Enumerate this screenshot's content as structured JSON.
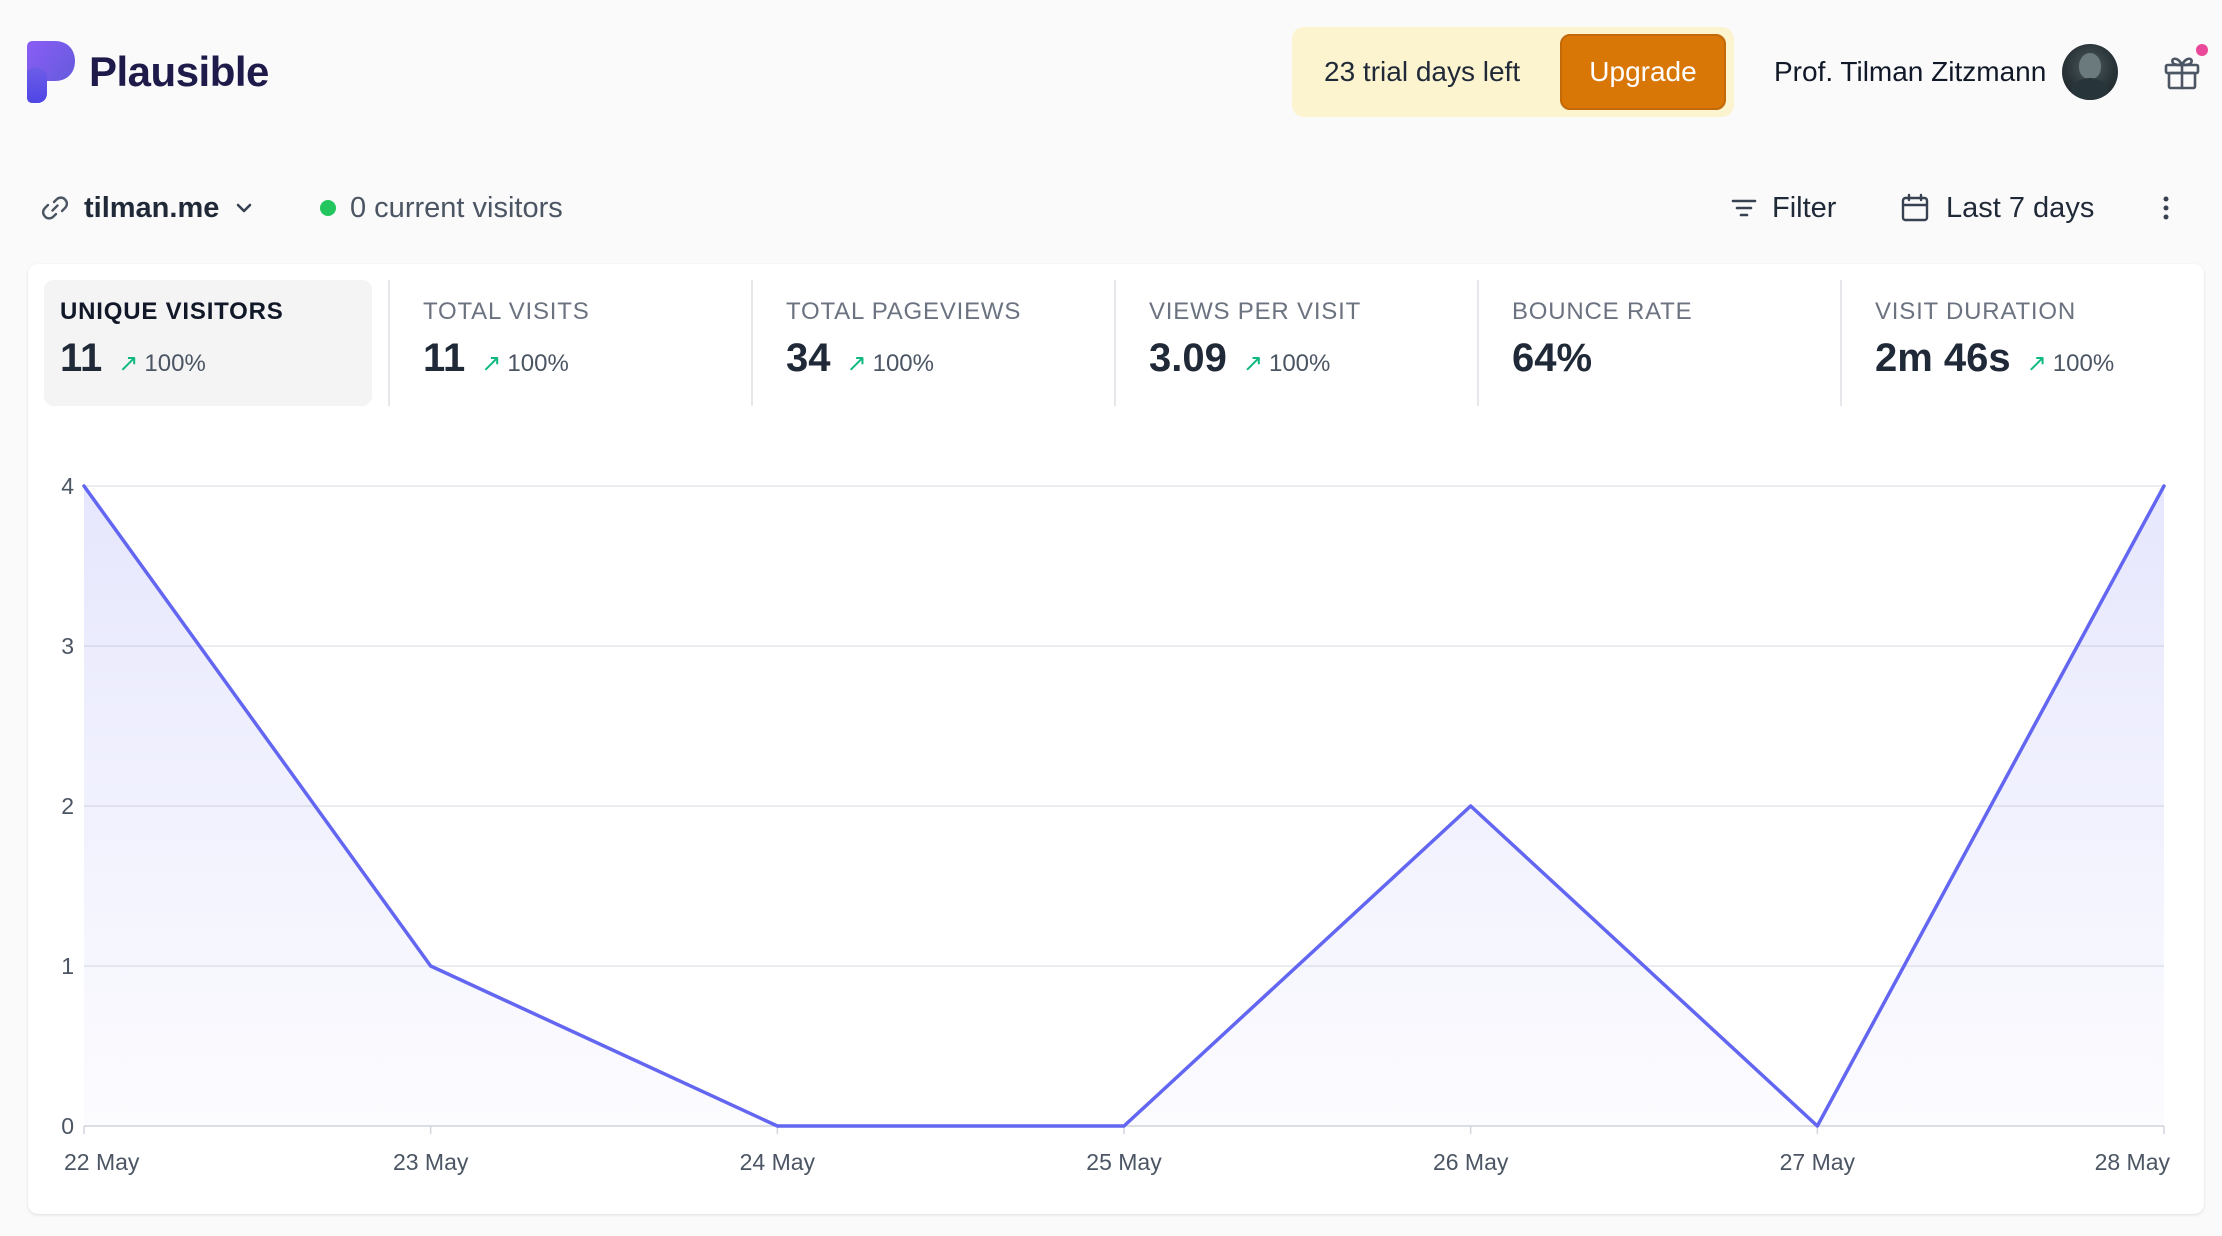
{
  "header": {
    "brand": "Plausible",
    "trial_text": "23 trial days left",
    "upgrade_label": "Upgrade",
    "user_name": "Prof. Tilman Zitzmann"
  },
  "toolbar": {
    "site": "tilman.me",
    "current_visitors": "0 current visitors",
    "filter_label": "Filter",
    "period_label": "Last 7 days"
  },
  "stats": [
    {
      "label": "UNIQUE VISITORS",
      "value": "11",
      "change": "100%",
      "active": true
    },
    {
      "label": "TOTAL VISITS",
      "value": "11",
      "change": "100%"
    },
    {
      "label": "TOTAL PAGEVIEWS",
      "value": "34",
      "change": "100%"
    },
    {
      "label": "VIEWS PER VISIT",
      "value": "3.09",
      "change": "100%"
    },
    {
      "label": "BOUNCE RATE",
      "value": "64%",
      "change": ""
    },
    {
      "label": "VISIT DURATION",
      "value": "2m 46s",
      "change": "100%"
    }
  ],
  "colors": {
    "accent": "#6366f1",
    "upgrade": "#d97706",
    "trial_bg": "#fcf3cf",
    "live_dot": "#22c55e",
    "positive": "#10b981"
  },
  "icons": {
    "logo": "plausible-logo-icon",
    "site": "link-icon",
    "site_toggle": "chevron-down-icon",
    "filter": "filter-icon",
    "period": "calendar-icon",
    "menu": "more-vertical-icon",
    "gift": "gift-icon",
    "change": "arrow-up-right-icon"
  },
  "chart_data": {
    "type": "area",
    "categories": [
      "22 May",
      "23 May",
      "24 May",
      "25 May",
      "26 May",
      "27 May",
      "28 May"
    ],
    "series": [
      {
        "values": [
          4,
          1,
          0,
          0,
          2,
          0,
          4
        ]
      }
    ],
    "yticks": [
      0,
      1,
      2,
      3,
      4
    ],
    "ylim": [
      0,
      4
    ],
    "grid": true,
    "title": "",
    "xlabel": "",
    "ylabel": ""
  }
}
